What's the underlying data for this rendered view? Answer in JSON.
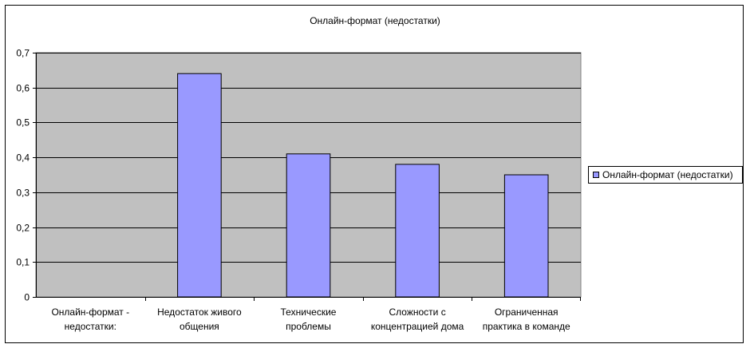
{
  "chart_data": {
    "type": "bar",
    "title": "Онлайн-формат (недостатки)",
    "xlabel": "",
    "ylabel": "",
    "categories": [
      [
        "Онлайн-формат -",
        "недостатки:"
      ],
      [
        "Недостаток живого",
        "общения"
      ],
      [
        "Технические",
        "проблемы"
      ],
      [
        "Сложности с",
        "концентрацией дома"
      ],
      [
        "Ограниченная",
        "практика в команде"
      ]
    ],
    "series": [
      {
        "name": "Онлайн-формат (недостатки)",
        "values": [
          null,
          0.64,
          0.41,
          0.38,
          0.35
        ]
      }
    ],
    "ylim": [
      0,
      0.7
    ],
    "yticks": [
      "0",
      "0,1",
      "0,2",
      "0,3",
      "0,4",
      "0,5",
      "0,6",
      "0,7"
    ],
    "grid": true,
    "legend_position": "right",
    "colors": {
      "plot_background": "#c0c0c0",
      "bar_fill": "#9999ff",
      "bar_stroke": "#000000",
      "gridline": "#000000"
    }
  }
}
